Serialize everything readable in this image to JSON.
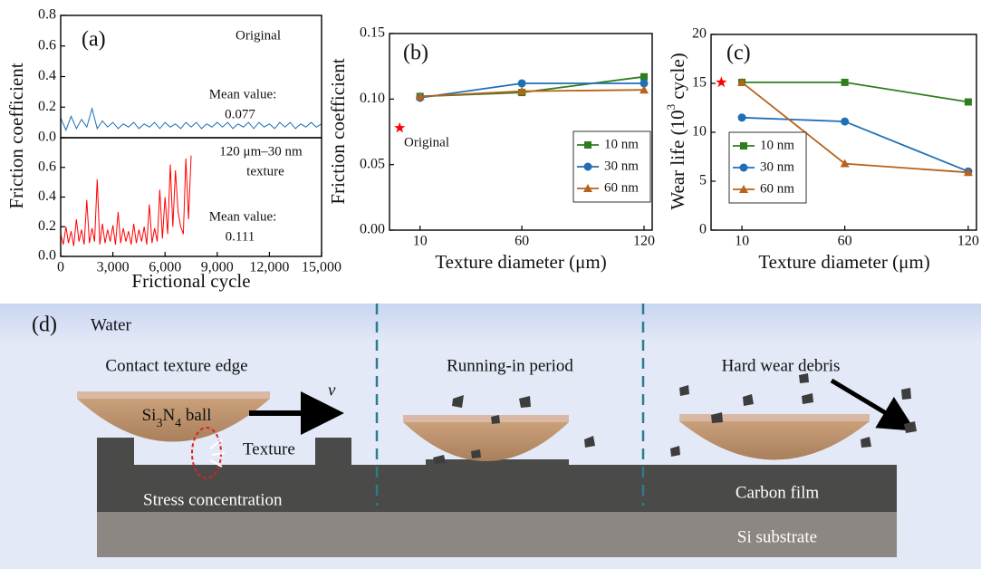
{
  "chart_data": [
    {
      "type": "line",
      "panel_label": "(a)",
      "x_label": "Frictional cycle",
      "y_label": "Friction coefficient",
      "xlim": [
        0,
        15000
      ],
      "xticks": [
        0,
        {
          "value": 3000,
          "label": "3,000"
        },
        {
          "value": 6000,
          "label": "6,000"
        },
        {
          "value": 9000,
          "label": "9,000"
        },
        {
          "value": 12000,
          "label": "12,000"
        },
        {
          "value": 15000,
          "label": "15,000"
        }
      ],
      "panels": [
        {
          "title": "Original",
          "mean_label": "Mean value:",
          "mean_value": 0.077,
          "ylim": [
            0,
            0.8
          ],
          "yticks": [
            {
              "value": 0,
              "label": "0.0"
            },
            0.2,
            0.4,
            0.6,
            0.8
          ],
          "series": [
            {
              "color": "#1f6fb5",
              "x": [
                0,
                300,
                600,
                900,
                1200,
                1500,
                1800,
                2100,
                2400,
                2700,
                3000,
                3300,
                3600,
                3900,
                4200,
                4500,
                4800,
                5100,
                5400,
                5700,
                6000,
                6300,
                6600,
                6900,
                7200,
                7500,
                7800,
                8100,
                8400,
                8700,
                9000,
                9300,
                9600,
                9900,
                10200,
                10500,
                10800,
                11100,
                11400,
                11700,
                12000,
                12300,
                12600,
                12900,
                13200,
                13500,
                13800,
                14100,
                14400,
                14700,
                15000
              ],
              "values": [
                0.13,
                0.05,
                0.14,
                0.06,
                0.12,
                0.07,
                0.19,
                0.06,
                0.11,
                0.07,
                0.1,
                0.06,
                0.09,
                0.07,
                0.1,
                0.06,
                0.09,
                0.07,
                0.1,
                0.06,
                0.1,
                0.07,
                0.09,
                0.06,
                0.1,
                0.07,
                0.1,
                0.06,
                0.09,
                0.07,
                0.1,
                0.07,
                0.1,
                0.06,
                0.09,
                0.07,
                0.1,
                0.06,
                0.1,
                0.07,
                0.09,
                0.06,
                0.1,
                0.07,
                0.1,
                0.06,
                0.09,
                0.07,
                0.1,
                0.07,
                0.09
              ]
            }
          ]
        },
        {
          "title": [
            "120 μm–30 nm",
            "texture"
          ],
          "mean_label": "Mean value:",
          "mean_value": 0.111,
          "ylim": [
            0,
            0.8
          ],
          "yticks": [
            {
              "value": 0,
              "label": "0.0"
            },
            0.2,
            0.4,
            0.6
          ],
          "series": [
            {
              "color": "#ff0000",
              "x": [
                0,
                150,
                300,
                450,
                600,
                750,
                900,
                1050,
                1200,
                1350,
                1500,
                1650,
                1800,
                1950,
                2100,
                2250,
                2400,
                2550,
                2700,
                2850,
                3000,
                3150,
                3300,
                3450,
                3600,
                3750,
                3900,
                4050,
                4200,
                4350,
                4500,
                4650,
                4800,
                4950,
                5100,
                5250,
                5400,
                5550,
                5700,
                5850,
                6000,
                6150,
                6300,
                6450,
                6600,
                6750,
                6900,
                7050,
                7200,
                7350,
                7500
              ],
              "values": [
                0.15,
                0.08,
                0.2,
                0.09,
                0.17,
                0.07,
                0.25,
                0.1,
                0.18,
                0.08,
                0.38,
                0.09,
                0.19,
                0.1,
                0.52,
                0.08,
                0.22,
                0.09,
                0.18,
                0.1,
                0.21,
                0.08,
                0.3,
                0.09,
                0.19,
                0.1,
                0.17,
                0.08,
                0.22,
                0.09,
                0.18,
                0.1,
                0.2,
                0.08,
                0.35,
                0.09,
                0.19,
                0.1,
                0.45,
                0.12,
                0.4,
                0.15,
                0.62,
                0.2,
                0.58,
                0.3,
                0.2,
                0.15,
                0.66,
                0.25,
                0.68
              ]
            }
          ]
        }
      ]
    },
    {
      "type": "line",
      "panel_label": "(b)",
      "x_label": "Texture diameter (μm)",
      "y_label": "Friction coefficient",
      "xlim": [
        -5,
        124
      ],
      "xticks": [
        10,
        60,
        120
      ],
      "ylim": [
        0,
        0.15
      ],
      "yticks": [
        {
          "value": 0,
          "label": "0.00"
        },
        {
          "value": 0.05,
          "label": "0.05"
        },
        {
          "value": 0.1,
          "label": "0.10"
        },
        {
          "value": 0.15,
          "label": "0.15"
        }
      ],
      "legend": "right",
      "reference": {
        "name": "Original",
        "x": 0,
        "value": 0.078,
        "color": "#ff0000"
      },
      "series": [
        {
          "name": "10 nm",
          "color": "#2e7d1e",
          "marker": "square",
          "x": [
            10,
            60,
            120
          ],
          "values": [
            0.102,
            0.105,
            0.117
          ]
        },
        {
          "name": "30 nm",
          "color": "#1f6fb5",
          "marker": "circle",
          "x": [
            10,
            60,
            120
          ],
          "values": [
            0.101,
            0.112,
            0.112
          ]
        },
        {
          "name": "60 nm",
          "color": "#b8621b",
          "marker": "triangle",
          "x": [
            10,
            60,
            120
          ],
          "values": [
            0.102,
            0.106,
            0.107
          ]
        }
      ]
    },
    {
      "type": "line",
      "panel_label": "(c)",
      "x_label": "Texture diameter (μm)",
      "y_label": [
        "Wear life (10",
        "3",
        " cycle)"
      ],
      "xlim": [
        -5,
        124
      ],
      "xticks": [
        10,
        60,
        120
      ],
      "ylim": [
        0,
        20
      ],
      "yticks": [
        0,
        5,
        10,
        15,
        20
      ],
      "legend": "left",
      "reference": {
        "x": 0,
        "value": 15.1,
        "color": "#ff0000"
      },
      "series": [
        {
          "name": "10 nm",
          "color": "#2e7d1e",
          "marker": "square",
          "x": [
            10,
            60,
            120
          ],
          "values": [
            15.1,
            15.1,
            13.1
          ]
        },
        {
          "name": "30 nm",
          "color": "#1f6fb5",
          "marker": "circle",
          "x": [
            10,
            60,
            120
          ],
          "values": [
            11.5,
            11.1,
            6.0
          ]
        },
        {
          "name": "60 nm",
          "color": "#b8621b",
          "marker": "triangle",
          "x": [
            10,
            60,
            120
          ],
          "values": [
            15.1,
            6.8,
            5.9
          ]
        }
      ]
    }
  ],
  "diagram": {
    "panel_label": "(d)",
    "water": "Water",
    "contact": "Contact texture edge",
    "ball": [
      "Si",
      "3",
      "N",
      "4",
      " ball"
    ],
    "velocity": "v",
    "texture": "Texture",
    "stress": "Stress concentration",
    "running_in": "Running-in period",
    "debris": "Hard wear debris",
    "carbon_film": "Carbon film",
    "substrate": "Si substrate"
  }
}
